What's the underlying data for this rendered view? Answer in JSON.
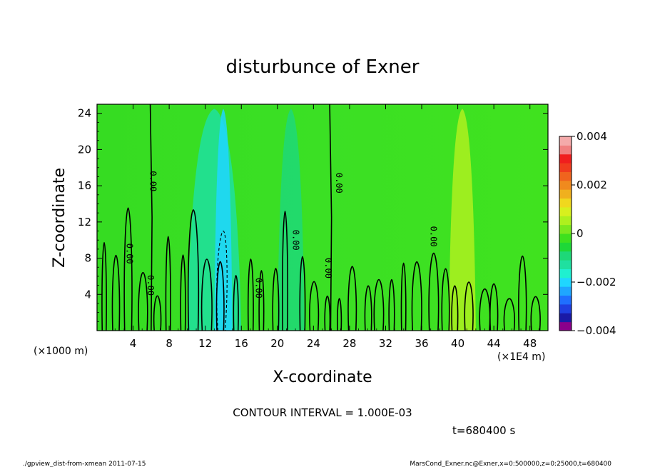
{
  "chart_data": {
    "type": "heatmap",
    "title": "disturbunce of Exner",
    "xlabel": "X-coordinate",
    "ylabel": "Z-coordinate",
    "x_unit_left": "(×1000 m)",
    "x_unit_right": "(×1E4 m)",
    "xlim": [
      0,
      50
    ],
    "ylim": [
      0,
      25
    ],
    "x_ticks": [
      4,
      8,
      12,
      16,
      20,
      24,
      28,
      32,
      36,
      40,
      44,
      48
    ],
    "y_ticks": [
      4,
      8,
      12,
      16,
      20,
      24
    ],
    "colorbar": {
      "range": [
        -0.004,
        0.004
      ],
      "tick_labels": [
        "0.004",
        "0.002",
        "0",
        "−0.002",
        "−0.004"
      ],
      "colors": [
        "#8b008b",
        "#1a1aa6",
        "#1f3fe0",
        "#1f6fff",
        "#1fa6ff",
        "#1fd6ff",
        "#1ff0d0",
        "#1fe0a0",
        "#1ed878",
        "#1ed838",
        "#3ee01e",
        "#7ae81e",
        "#aef01e",
        "#d8f01e",
        "#f0d81e",
        "#f0b01e",
        "#f08a1e",
        "#f0641e",
        "#f03c1e",
        "#f01e1e",
        "#f08080",
        "#f4aaaa"
      ]
    },
    "regions": [
      {
        "x": [
          10,
          16
        ],
        "value": -0.0012
      },
      {
        "x": [
          13,
          15
        ],
        "value": -0.0019
      },
      {
        "x": [
          20,
          23
        ],
        "value": -0.0009
      },
      {
        "x": [
          39,
          42
        ],
        "value": 0.0004
      }
    ],
    "contour_labels": [
      {
        "text": "0.00",
        "x": 5.9,
        "z": 16.5
      },
      {
        "text": "0.00",
        "x": 3.3,
        "z": 8.5
      },
      {
        "text": "0.00",
        "x": 5.6,
        "z": 5.0
      },
      {
        "text": "0.00",
        "x": 17.6,
        "z": 4.7
      },
      {
        "text": "0.00",
        "x": 21.7,
        "z": 10.0
      },
      {
        "text": "0.00",
        "x": 25.3,
        "z": 6.9
      },
      {
        "text": "0.00",
        "x": 26.5,
        "z": 16.3
      },
      {
        "text": "0.00",
        "x": 37.0,
        "z": 10.4
      }
    ],
    "contour_interval_text": "CONTOUR INTERVAL = 1.000E-03",
    "time_text": "t=680400 s"
  },
  "footer": {
    "left": "./gpview_dist-from-xmean  2011-07-15",
    "right": "MarsCond_Exner.nc@Exner,x=0:500000,z=0:25000,t=680400"
  }
}
